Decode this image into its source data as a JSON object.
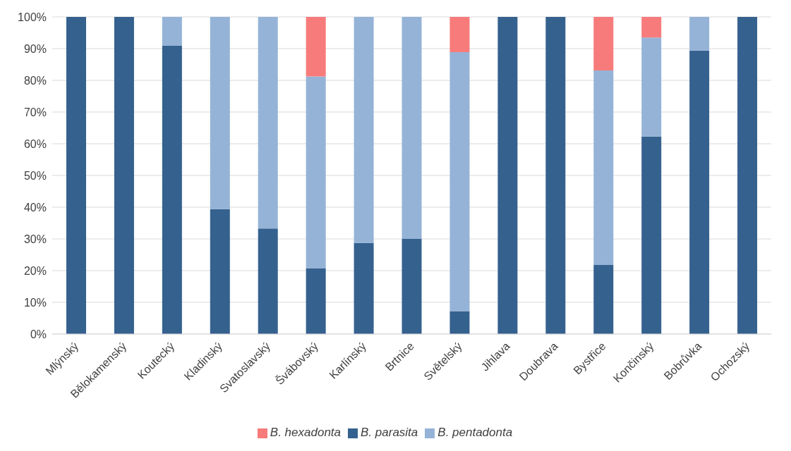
{
  "chart_data": {
    "type": "bar",
    "stacked": true,
    "categories": [
      "Mlýnský",
      "Bělokamenský",
      "Koutecký",
      "Kladinský",
      "Svatoslavský",
      "Švábovský",
      "Karlínský",
      "Brtnice",
      "Světelský",
      "Jihlava",
      "Doubrava",
      "Bystřice",
      "Končinský",
      "Bobrůvka",
      "Ochozský"
    ],
    "series": [
      {
        "name": "B. parasita",
        "color": "#35618f",
        "values": [
          100,
          100,
          91,
          39.4,
          33.3,
          20.8,
          28.7,
          30,
          7.2,
          100,
          100,
          21.8,
          62.3,
          89.4,
          100
        ]
      },
      {
        "name": "B. pentadonta",
        "color": "#95b3d7",
        "values": [
          0,
          0,
          9,
          60.6,
          66.7,
          60.4,
          71.3,
          70,
          81.7,
          0,
          0,
          61.3,
          31.2,
          10.6,
          0
        ]
      },
      {
        "name": "B. hexadonta",
        "color": "#f77b7b",
        "values": [
          0,
          0,
          0,
          0,
          0,
          18.8,
          0,
          0,
          11.1,
          0,
          0,
          16.9,
          6.5,
          0,
          0
        ]
      }
    ],
    "ylim": [
      0,
      100
    ],
    "yticks": [
      {
        "value": 0,
        "label": "0%"
      },
      {
        "value": 10,
        "label": "10%"
      },
      {
        "value": 20,
        "label": "20%"
      },
      {
        "value": 30,
        "label": "30%"
      },
      {
        "value": 40,
        "label": "40%"
      },
      {
        "value": 50,
        "label": "50%"
      },
      {
        "value": 60,
        "label": "60%"
      },
      {
        "value": 70,
        "label": "70%"
      },
      {
        "value": 80,
        "label": "80%"
      },
      {
        "value": 90,
        "label": "90%"
      },
      {
        "value": 100,
        "label": "100%"
      }
    ],
    "grid": "y",
    "legend": "bottom"
  }
}
